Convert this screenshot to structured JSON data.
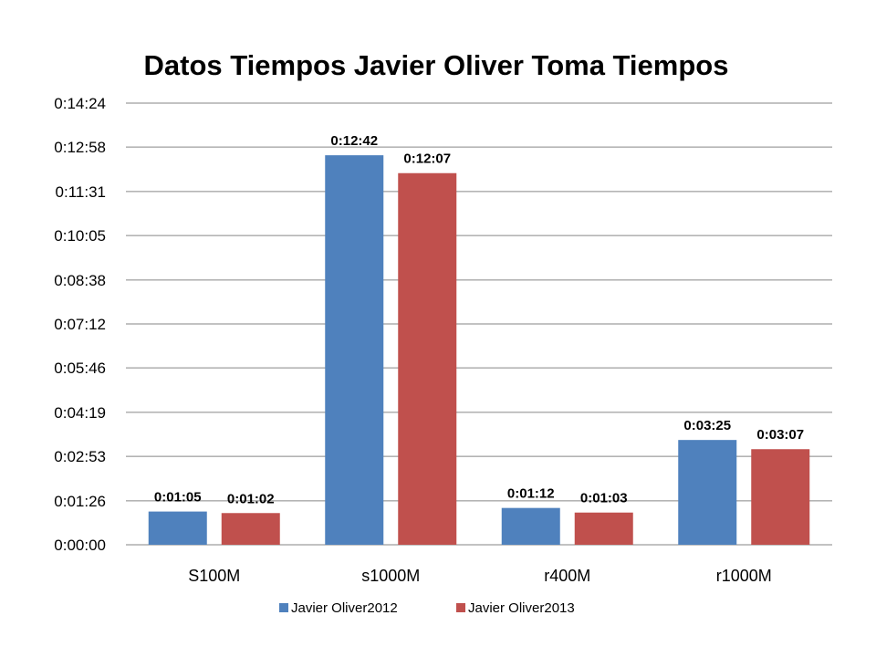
{
  "chart_data": {
    "type": "bar",
    "title": "Datos Tiempos Javier Oliver Toma Tiempos",
    "xlabel": "",
    "ylabel": "",
    "categories": [
      "S100M",
      "s1000M",
      "r400M",
      "r1000M"
    ],
    "y_ticks": [
      "0:00:00",
      "0:01:26",
      "0:02:53",
      "0:04:19",
      "0:05:46",
      "0:07:12",
      "0:08:38",
      "0:10:05",
      "0:11:31",
      "0:12:58",
      "0:14:24"
    ],
    "ylim": [
      "0:00:00",
      "0:14:24"
    ],
    "grid": true,
    "legend_position": "bottom",
    "series": [
      {
        "name": "Javier Oliver2012",
        "color": "#4F81BD",
        "values": [
          "0:01:05",
          "0:12:42",
          "0:01:12",
          "0:03:25"
        ]
      },
      {
        "name": "Javier Oliver2013",
        "color": "#C0504D",
        "values": [
          "0:01:02",
          "0:12:07",
          "0:01:03",
          "0:03:07"
        ]
      }
    ]
  }
}
